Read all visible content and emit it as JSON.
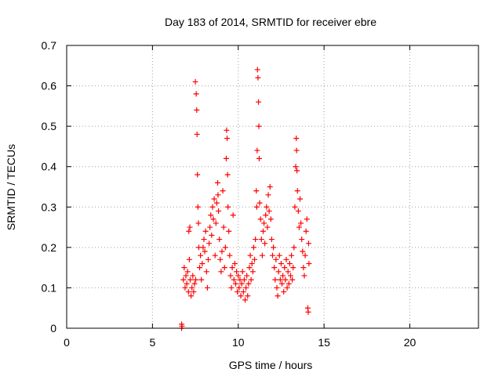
{
  "chart_data": {
    "type": "scatter",
    "title": "Day 183 of 2014, SRMTID for receiver ebre",
    "xlabel": "GPS time / hours",
    "ylabel": "SRMTID / TECUs",
    "xlim": [
      0,
      24
    ],
    "ylim": [
      0,
      0.7
    ],
    "xticks": [
      0,
      5,
      10,
      15,
      20
    ],
    "yticks": [
      0,
      0.1,
      0.2,
      0.3,
      0.4,
      0.5,
      0.6,
      0.7
    ],
    "xtick_labels": [
      "0",
      "5",
      "10",
      "15",
      "20"
    ],
    "ytick_labels": [
      "0",
      "0.1",
      "0.2",
      "0.3",
      "0.4",
      "0.5",
      "0.6",
      "0.7"
    ],
    "grid": true,
    "marker": "+",
    "marker_color": "#ff0000",
    "series": [
      {
        "name": "SRMTID",
        "points": [
          [
            6.7,
            0.0
          ],
          [
            6.7,
            0.01
          ],
          [
            6.72,
            0.005
          ],
          [
            6.8,
            0.12
          ],
          [
            6.85,
            0.15
          ],
          [
            6.9,
            0.1
          ],
          [
            6.95,
            0.13
          ],
          [
            7.0,
            0.11
          ],
          [
            7.05,
            0.14
          ],
          [
            7.1,
            0.09
          ],
          [
            7.12,
            0.24
          ],
          [
            7.15,
            0.17
          ],
          [
            7.18,
            0.25
          ],
          [
            7.2,
            0.12
          ],
          [
            7.25,
            0.08
          ],
          [
            7.3,
            0.1
          ],
          [
            7.35,
            0.13
          ],
          [
            7.4,
            0.09
          ],
          [
            7.45,
            0.11
          ],
          [
            7.5,
            0.61
          ],
          [
            7.52,
            0.12
          ],
          [
            7.55,
            0.58
          ],
          [
            7.58,
            0.54
          ],
          [
            7.6,
            0.48
          ],
          [
            7.62,
            0.38
          ],
          [
            7.65,
            0.3
          ],
          [
            7.68,
            0.26
          ],
          [
            7.7,
            0.2
          ],
          [
            7.75,
            0.15
          ],
          [
            7.8,
            0.18
          ],
          [
            7.85,
            0.12
          ],
          [
            7.9,
            0.16
          ],
          [
            7.95,
            0.2
          ],
          [
            8.0,
            0.22
          ],
          [
            8.05,
            0.19
          ],
          [
            8.1,
            0.24
          ],
          [
            8.15,
            0.14
          ],
          [
            8.2,
            0.1
          ],
          [
            8.25,
            0.17
          ],
          [
            8.3,
            0.21
          ],
          [
            8.35,
            0.25
          ],
          [
            8.4,
            0.28
          ],
          [
            8.45,
            0.23
          ],
          [
            8.5,
            0.3
          ],
          [
            8.55,
            0.27
          ],
          [
            8.6,
            0.32
          ],
          [
            8.65,
            0.18
          ],
          [
            8.7,
            0.26
          ],
          [
            8.75,
            0.31
          ],
          [
            8.8,
            0.36
          ],
          [
            8.82,
            0.33
          ],
          [
            8.85,
            0.29
          ],
          [
            8.9,
            0.22
          ],
          [
            8.95,
            0.17
          ],
          [
            9.0,
            0.14
          ],
          [
            9.05,
            0.19
          ],
          [
            9.1,
            0.34
          ],
          [
            9.15,
            0.25
          ],
          [
            9.2,
            0.15
          ],
          [
            9.25,
            0.2
          ],
          [
            9.3,
            0.42
          ],
          [
            9.32,
            0.49
          ],
          [
            9.35,
            0.47
          ],
          [
            9.38,
            0.38
          ],
          [
            9.4,
            0.3
          ],
          [
            9.45,
            0.24
          ],
          [
            9.5,
            0.18
          ],
          [
            9.55,
            0.13
          ],
          [
            9.6,
            0.1
          ],
          [
            9.65,
            0.15
          ],
          [
            9.7,
            0.28
          ],
          [
            9.75,
            0.12
          ],
          [
            9.8,
            0.16
          ],
          [
            9.85,
            0.11
          ],
          [
            9.9,
            0.14
          ],
          [
            9.95,
            0.09
          ],
          [
            10.0,
            0.13
          ],
          [
            10.05,
            0.1
          ],
          [
            10.1,
            0.12
          ],
          [
            10.15,
            0.08
          ],
          [
            10.2,
            0.11
          ],
          [
            10.25,
            0.14
          ],
          [
            10.3,
            0.09
          ],
          [
            10.35,
            0.12
          ],
          [
            10.4,
            0.07
          ],
          [
            10.45,
            0.1
          ],
          [
            10.5,
            0.13
          ],
          [
            10.55,
            0.08
          ],
          [
            10.6,
            0.11
          ],
          [
            10.65,
            0.15
          ],
          [
            10.7,
            0.18
          ],
          [
            10.75,
            0.12
          ],
          [
            10.8,
            0.16
          ],
          [
            10.85,
            0.14
          ],
          [
            10.9,
            0.2
          ],
          [
            10.95,
            0.17
          ],
          [
            11.0,
            0.22
          ],
          [
            11.05,
            0.34
          ],
          [
            11.08,
            0.3
          ],
          [
            11.1,
            0.44
          ],
          [
            11.12,
            0.64
          ],
          [
            11.15,
            0.62
          ],
          [
            11.18,
            0.56
          ],
          [
            11.2,
            0.5
          ],
          [
            11.22,
            0.42
          ],
          [
            11.25,
            0.31
          ],
          [
            11.3,
            0.27
          ],
          [
            11.35,
            0.22
          ],
          [
            11.4,
            0.18
          ],
          [
            11.45,
            0.24
          ],
          [
            11.5,
            0.26
          ],
          [
            11.55,
            0.21
          ],
          [
            11.6,
            0.28
          ],
          [
            11.65,
            0.3
          ],
          [
            11.7,
            0.25
          ],
          [
            11.75,
            0.33
          ],
          [
            11.8,
            0.29
          ],
          [
            11.85,
            0.35
          ],
          [
            11.9,
            0.27
          ],
          [
            11.95,
            0.22
          ],
          [
            12.0,
            0.18
          ],
          [
            12.05,
            0.2
          ],
          [
            12.1,
            0.15
          ],
          [
            12.15,
            0.12
          ],
          [
            12.2,
            0.17
          ],
          [
            12.25,
            0.1
          ],
          [
            12.3,
            0.08
          ],
          [
            12.35,
            0.14
          ],
          [
            12.4,
            0.18
          ],
          [
            12.45,
            0.12
          ],
          [
            12.5,
            0.16
          ],
          [
            12.55,
            0.11
          ],
          [
            12.6,
            0.13
          ],
          [
            12.65,
            0.09
          ],
          [
            12.7,
            0.15
          ],
          [
            12.75,
            0.12
          ],
          [
            12.8,
            0.17
          ],
          [
            12.85,
            0.1
          ],
          [
            12.9,
            0.14
          ],
          [
            12.95,
            0.11
          ],
          [
            13.0,
            0.16
          ],
          [
            13.05,
            0.13
          ],
          [
            13.1,
            0.18
          ],
          [
            13.15,
            0.12
          ],
          [
            13.2,
            0.15
          ],
          [
            13.25,
            0.2
          ],
          [
            13.3,
            0.3
          ],
          [
            13.35,
            0.4
          ],
          [
            13.38,
            0.47
          ],
          [
            13.4,
            0.44
          ],
          [
            13.42,
            0.39
          ],
          [
            13.45,
            0.34
          ],
          [
            13.5,
            0.29
          ],
          [
            13.55,
            0.25
          ],
          [
            13.6,
            0.32
          ],
          [
            13.65,
            0.26
          ],
          [
            13.7,
            0.22
          ],
          [
            13.75,
            0.19
          ],
          [
            13.8,
            0.15
          ],
          [
            13.85,
            0.13
          ],
          [
            13.9,
            0.18
          ],
          [
            13.95,
            0.24
          ],
          [
            14.0,
            0.27
          ],
          [
            14.05,
            0.05
          ],
          [
            14.08,
            0.04
          ],
          [
            14.1,
            0.21
          ],
          [
            14.12,
            0.16
          ]
        ]
      }
    ]
  }
}
